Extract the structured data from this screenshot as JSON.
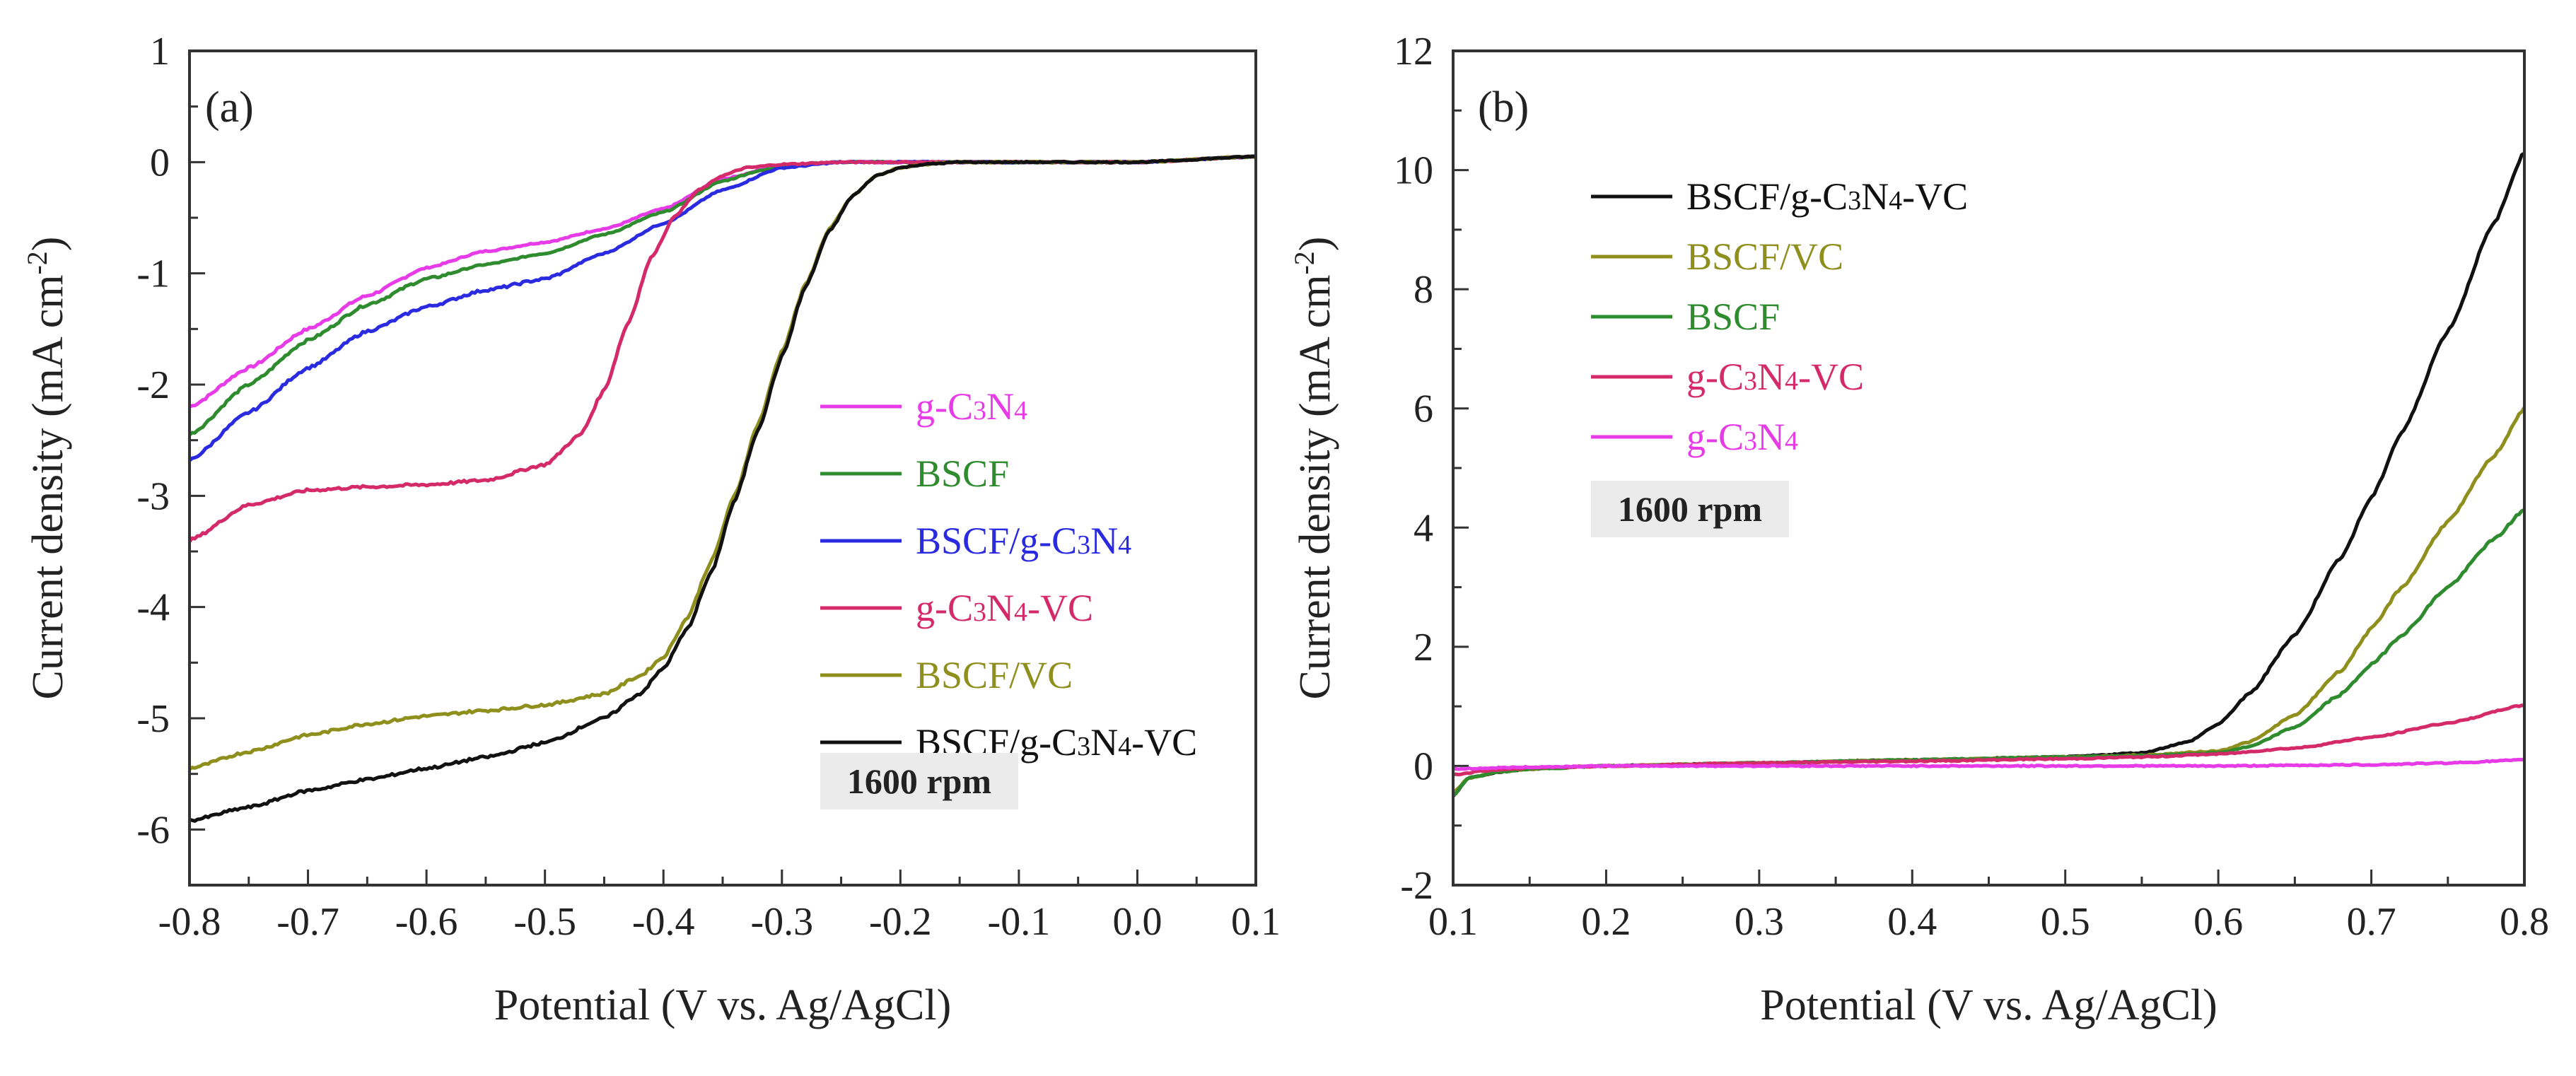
{
  "chart_data": [
    {
      "type": "line",
      "panel_label": "(a)",
      "xlabel": "Potential (V vs. Ag/AgCl)",
      "ylabel": "Current density (mA cm",
      "ylabel_sup": "-2",
      "ylabel_close": ")",
      "xlim": [
        -0.8,
        0.1
      ],
      "ylim": [
        -6.5,
        1
      ],
      "xticks": [
        -0.8,
        -0.7,
        -0.6,
        -0.5,
        -0.4,
        -0.3,
        -0.2,
        -0.1,
        0.0,
        0.1
      ],
      "xtick_labels": [
        "-0.8",
        "-0.7",
        "-0.6",
        "-0.5",
        "-0.4",
        "-0.3",
        "-0.2",
        "-0.1",
        "0.0",
        "0.1"
      ],
      "yticks": [
        1,
        0,
        -1,
        -2,
        -3,
        -4,
        -5,
        -6
      ],
      "ytick_labels": [
        "1",
        "0",
        "-1",
        "-2",
        "-3",
        "-4",
        "-5",
        "-6"
      ],
      "annotation": "1600 rpm",
      "legend_position": "center-right",
      "series": [
        {
          "name": "g-C3N4",
          "label": [
            "g-C",
            "3",
            "N",
            "4",
            ""
          ],
          "color": "#e83be8",
          "x": [
            -0.8,
            -0.75,
            -0.7,
            -0.65,
            -0.6,
            -0.55,
            -0.5,
            -0.45,
            -0.4,
            -0.35,
            -0.3,
            -0.25,
            -0.2,
            -0.1,
            0.0,
            0.1
          ],
          "y": [
            -2.2,
            -1.85,
            -1.5,
            -1.2,
            -0.95,
            -0.8,
            -0.72,
            -0.6,
            -0.42,
            -0.15,
            -0.03,
            0.0,
            0.0,
            0.0,
            0.0,
            0.05
          ]
        },
        {
          "name": "BSCF",
          "label": [
            "BSCF"
          ],
          "color": "#2e8b2e",
          "x": [
            -0.8,
            -0.75,
            -0.7,
            -0.65,
            -0.6,
            -0.55,
            -0.5,
            -0.45,
            -0.4,
            -0.35,
            -0.32,
            -0.3,
            -0.28,
            -0.26,
            -0.24,
            -0.22,
            -0.2,
            -0.1,
            0.0,
            0.1
          ],
          "y": [
            -2.45,
            -2.0,
            -1.6,
            -1.28,
            -1.05,
            -0.92,
            -0.82,
            -0.65,
            -0.45,
            -0.17,
            -0.08,
            -0.04,
            -0.02,
            0.0,
            0.0,
            0.0,
            0.0,
            0.0,
            0.0,
            0.05
          ]
        },
        {
          "name": "BSCF/g-C3N4",
          "label": [
            "BSCF/g-C",
            "3",
            "N",
            "4",
            ""
          ],
          "color": "#2a2ae0",
          "x": [
            -0.8,
            -0.75,
            -0.7,
            -0.65,
            -0.6,
            -0.55,
            -0.5,
            -0.45,
            -0.4,
            -0.35,
            -0.3,
            -0.25,
            -0.2,
            -0.1,
            0.0,
            0.1
          ],
          "y": [
            -2.68,
            -2.25,
            -1.85,
            -1.52,
            -1.3,
            -1.15,
            -1.05,
            -0.82,
            -0.55,
            -0.25,
            -0.05,
            0.0,
            0.0,
            0.0,
            0.0,
            0.05
          ]
        },
        {
          "name": "g-C3N4-VC",
          "label": [
            "g-C",
            "3",
            "N",
            "4",
            "-VC"
          ],
          "color": "#d42a6a",
          "x": [
            -0.8,
            -0.75,
            -0.7,
            -0.65,
            -0.6,
            -0.55,
            -0.5,
            -0.47,
            -0.45,
            -0.43,
            -0.41,
            -0.39,
            -0.37,
            -0.35,
            -0.33,
            -0.3,
            -0.25,
            -0.2,
            -0.1,
            0.0,
            0.1
          ],
          "y": [
            -3.4,
            -3.08,
            -2.95,
            -2.92,
            -2.9,
            -2.86,
            -2.72,
            -2.45,
            -2.05,
            -1.45,
            -0.85,
            -0.48,
            -0.25,
            -0.12,
            -0.05,
            -0.02,
            0.0,
            0.0,
            0.0,
            0.0,
            0.05
          ]
        },
        {
          "name": "BSCF/VC",
          "label": [
            "BSCF/VC"
          ],
          "color": "#8f8f1e",
          "x": [
            -0.8,
            -0.75,
            -0.7,
            -0.65,
            -0.6,
            -0.55,
            -0.5,
            -0.45,
            -0.42,
            -0.4,
            -0.38,
            -0.36,
            -0.34,
            -0.32,
            -0.3,
            -0.28,
            -0.26,
            -0.24,
            -0.22,
            -0.2,
            -0.18,
            -0.15,
            -0.1,
            0.0,
            0.1
          ],
          "y": [
            -5.45,
            -5.3,
            -5.15,
            -5.05,
            -4.98,
            -4.93,
            -4.88,
            -4.78,
            -4.62,
            -4.45,
            -4.1,
            -3.6,
            -3.0,
            -2.35,
            -1.7,
            -1.1,
            -0.6,
            -0.3,
            -0.12,
            -0.05,
            -0.02,
            0.0,
            0.0,
            0.0,
            0.05
          ]
        },
        {
          "name": "BSCF/g-C3N4-VC",
          "label": [
            "BSCF/g-C",
            "3",
            "N",
            "4",
            "-VC"
          ],
          "color": "#111111",
          "x": [
            -0.8,
            -0.75,
            -0.7,
            -0.65,
            -0.6,
            -0.55,
            -0.5,
            -0.45,
            -0.42,
            -0.4,
            -0.38,
            -0.36,
            -0.34,
            -0.32,
            -0.3,
            -0.28,
            -0.26,
            -0.24,
            -0.22,
            -0.2,
            -0.18,
            -0.15,
            -0.1,
            0.0,
            0.1
          ],
          "y": [
            -5.92,
            -5.8,
            -5.65,
            -5.55,
            -5.45,
            -5.35,
            -5.22,
            -5.0,
            -4.78,
            -4.55,
            -4.2,
            -3.7,
            -3.05,
            -2.4,
            -1.75,
            -1.12,
            -0.62,
            -0.3,
            -0.12,
            -0.05,
            -0.02,
            0.0,
            0.0,
            0.0,
            0.05
          ]
        }
      ]
    },
    {
      "type": "line",
      "panel_label": "(b)",
      "xlabel": "Potential (V vs. Ag/AgCl)",
      "ylabel": "Current density (mA cm",
      "ylabel_sup": "-2",
      "ylabel_close": ")",
      "xlim": [
        0.1,
        0.8
      ],
      "ylim": [
        -2,
        12
      ],
      "xticks": [
        0.1,
        0.2,
        0.3,
        0.4,
        0.5,
        0.6,
        0.7,
        0.8
      ],
      "xtick_labels": [
        "0.1",
        "0.2",
        "0.3",
        "0.4",
        "0.5",
        "0.6",
        "0.7",
        "0.8"
      ],
      "yticks": [
        12,
        10,
        8,
        6,
        4,
        2,
        0,
        -2
      ],
      "ytick_labels": [
        "12",
        "10",
        "8",
        "6",
        "4",
        "2",
        "0",
        "-2"
      ],
      "annotation": "1600 rpm",
      "legend_position": "top-left",
      "series": [
        {
          "name": "BSCF/g-C3N4-VC",
          "label": [
            "BSCF/g-C",
            "3",
            "N",
            "4",
            "-VC"
          ],
          "color": "#111111",
          "x": [
            0.1,
            0.11,
            0.13,
            0.15,
            0.2,
            0.3,
            0.4,
            0.5,
            0.55,
            0.58,
            0.6,
            0.62,
            0.65,
            0.68,
            0.7,
            0.72,
            0.75,
            0.78,
            0.8
          ],
          "y": [
            -0.5,
            -0.2,
            -0.1,
            -0.05,
            0.0,
            0.05,
            0.1,
            0.15,
            0.22,
            0.4,
            0.7,
            1.2,
            2.2,
            3.5,
            4.5,
            5.6,
            7.3,
            9.1,
            10.3
          ]
        },
        {
          "name": "BSCF/VC",
          "label": [
            "BSCF/VC"
          ],
          "color": "#8f8f1e",
          "x": [
            0.1,
            0.11,
            0.13,
            0.15,
            0.2,
            0.3,
            0.4,
            0.5,
            0.55,
            0.6,
            0.62,
            0.65,
            0.68,
            0.7,
            0.72,
            0.75,
            0.78,
            0.8
          ],
          "y": [
            -0.45,
            -0.2,
            -0.1,
            -0.05,
            0.0,
            0.05,
            0.1,
            0.15,
            0.18,
            0.25,
            0.4,
            0.85,
            1.6,
            2.3,
            3.0,
            4.1,
            5.2,
            6.0
          ]
        },
        {
          "name": "BSCF",
          "label": [
            "BSCF"
          ],
          "color": "#2e8b2e",
          "x": [
            0.1,
            0.11,
            0.13,
            0.15,
            0.2,
            0.3,
            0.4,
            0.5,
            0.55,
            0.6,
            0.62,
            0.65,
            0.68,
            0.7,
            0.72,
            0.75,
            0.78,
            0.8
          ],
          "y": [
            -0.5,
            -0.2,
            -0.1,
            -0.05,
            0.0,
            0.05,
            0.1,
            0.15,
            0.17,
            0.22,
            0.32,
            0.65,
            1.2,
            1.7,
            2.2,
            3.0,
            3.8,
            4.3
          ]
        },
        {
          "name": "g-C3N4-VC",
          "label": [
            "g-C",
            "3",
            "N",
            "4",
            "-VC"
          ],
          "color": "#d42a6a",
          "x": [
            0.1,
            0.12,
            0.15,
            0.2,
            0.3,
            0.4,
            0.5,
            0.55,
            0.6,
            0.65,
            0.7,
            0.75,
            0.8
          ],
          "y": [
            -0.15,
            -0.08,
            -0.03,
            0.0,
            0.05,
            0.08,
            0.12,
            0.15,
            0.2,
            0.3,
            0.48,
            0.72,
            1.02
          ]
        },
        {
          "name": "g-C3N4",
          "label": [
            "g-C",
            "3",
            "N",
            "4",
            ""
          ],
          "color": "#e83be8",
          "x": [
            0.1,
            0.15,
            0.2,
            0.3,
            0.4,
            0.5,
            0.6,
            0.7,
            0.75,
            0.8
          ],
          "y": [
            -0.05,
            -0.02,
            0.0,
            0.0,
            0.0,
            0.0,
            0.0,
            0.02,
            0.05,
            0.1
          ]
        }
      ]
    }
  ]
}
